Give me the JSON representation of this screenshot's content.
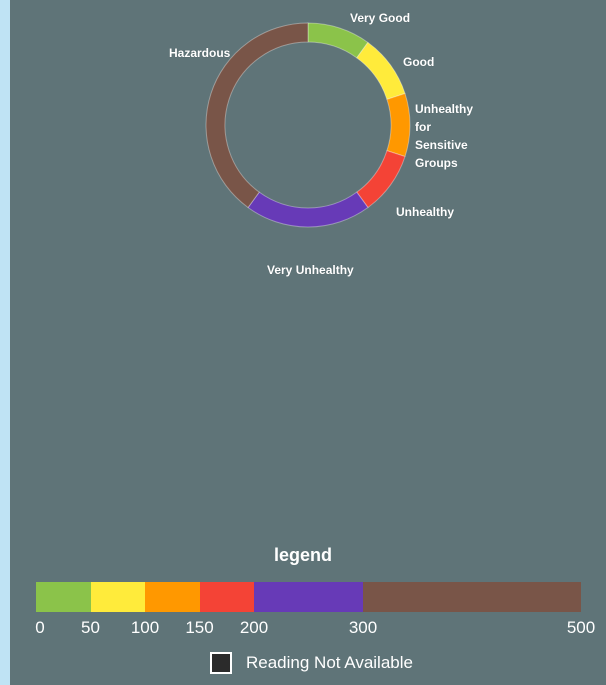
{
  "chart_data": {
    "type": "pie",
    "categories": [
      "Very Good",
      "Good",
      "Unhealthy for Sensitive Groups",
      "Unhealthy",
      "Very Unhealthy",
      "Hazardous"
    ],
    "values": [
      50,
      50,
      50,
      50,
      100,
      200
    ],
    "colors": [
      "#8bc34a",
      "#ffeb3b",
      "#ff9800",
      "#f44336",
      "#673ab7",
      "#795548"
    ],
    "donut": true
  },
  "labels": {
    "very_good": "Very Good",
    "good": "Good",
    "usg": "Unhealthy for Sensitive Groups",
    "unhealthy": "Unhealthy",
    "very_unhealthy": "Very Unhealthy",
    "hazardous": "Hazardous"
  },
  "legend": {
    "title": "legend",
    "scale_max": 500,
    "segments": [
      {
        "from": 0,
        "to": 50,
        "color": "#8bc34a"
      },
      {
        "from": 50,
        "to": 100,
        "color": "#ffeb3b"
      },
      {
        "from": 100,
        "to": 150,
        "color": "#ff9800"
      },
      {
        "from": 150,
        "to": 200,
        "color": "#f44336"
      },
      {
        "from": 200,
        "to": 300,
        "color": "#673ab7"
      },
      {
        "from": 300,
        "to": 500,
        "color": "#795548"
      }
    ],
    "ticks": [
      "0",
      "50",
      "100",
      "150",
      "200",
      "300",
      "500"
    ],
    "not_available_label": "Reading Not Available"
  }
}
